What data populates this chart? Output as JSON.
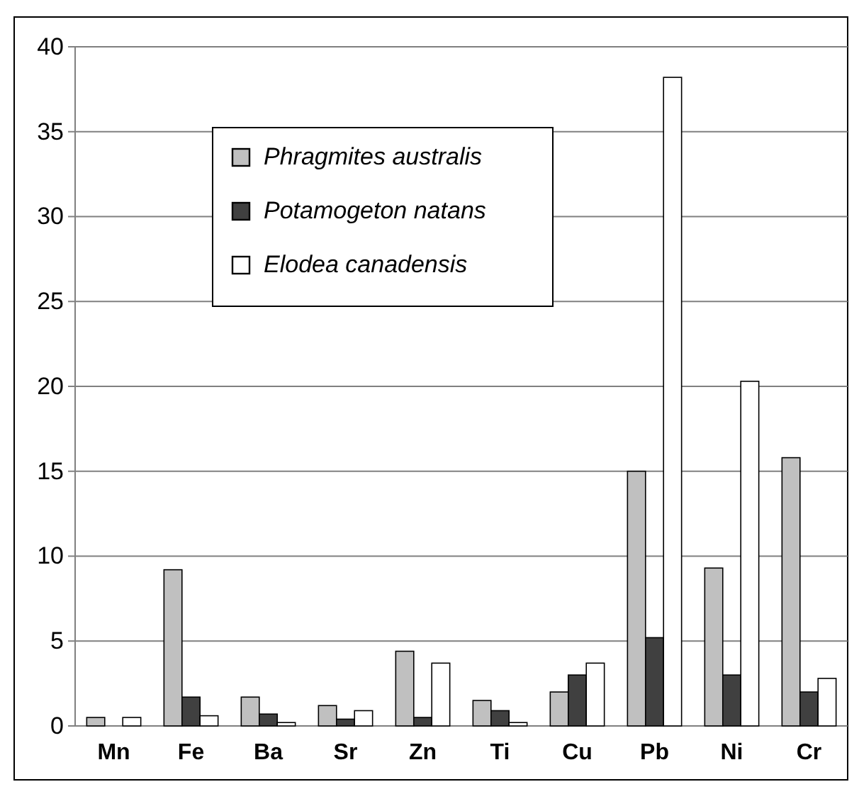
{
  "chart_data": {
    "type": "bar",
    "categories": [
      "Mn",
      "Fe",
      "Ba",
      "Sr",
      "Zn",
      "Ti",
      "Cu",
      "Pb",
      "Ni",
      "Cr"
    ],
    "series": [
      {
        "name": "Phragmites australis",
        "color": "#c0c0c0",
        "values": [
          0.5,
          9.2,
          1.7,
          1.2,
          4.4,
          1.5,
          2.0,
          15.0,
          9.3,
          15.8
        ]
      },
      {
        "name": "Potamogeton natans",
        "color": "#404040",
        "values": [
          0,
          1.7,
          0.7,
          0.4,
          0.5,
          0.9,
          3.0,
          5.2,
          3.0,
          2.0
        ]
      },
      {
        "name": "Elodea canadensis",
        "color": "#ffffff",
        "values": [
          0.5,
          0.6,
          0.2,
          0.9,
          3.7,
          0.2,
          3.7,
          38.2,
          20.3,
          2.8
        ]
      }
    ],
    "ylim": [
      0,
      40
    ],
    "yticks": [
      0,
      5,
      10,
      15,
      20,
      25,
      30,
      35,
      40
    ],
    "grid": "y",
    "legend": "top left"
  }
}
